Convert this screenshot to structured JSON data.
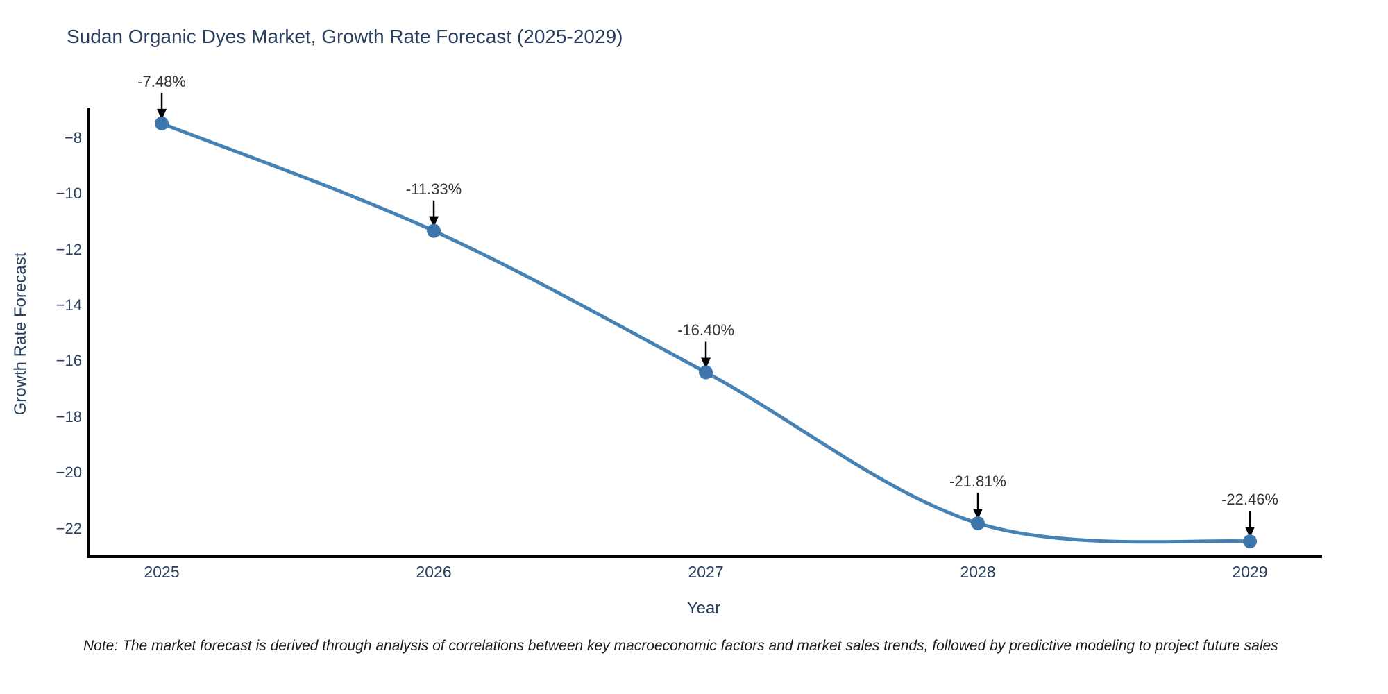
{
  "title": "Sudan Organic Dyes Market, Growth Rate Forecast (2025-2029)",
  "note": "Note: The market forecast is derived through analysis of correlations between key macroeconomic factors and market sales trends, followed by predictive modeling to project future sales",
  "chart_data": {
    "type": "line",
    "line_shape": "spline",
    "title": "Sudan Organic Dyes Market, Growth Rate Forecast (2025-2029)",
    "xlabel": "Year",
    "ylabel": "Growth Rate Forecast",
    "x": [
      2025,
      2026,
      2027,
      2028,
      2029
    ],
    "y": [
      -7.48,
      -11.33,
      -16.4,
      -21.81,
      -22.46
    ],
    "point_labels": [
      "-7.48%",
      "-11.33%",
      "-16.40%",
      "-21.81%",
      "-22.46%"
    ],
    "x_tick_labels": [
      "2025",
      "2026",
      "2027",
      "2028",
      "2029"
    ],
    "y_ticks": [
      -8,
      -10,
      -12,
      -14,
      -16,
      -18,
      -20,
      -22
    ],
    "y_tick_labels": [
      "−8",
      "−10",
      "−12",
      "−14",
      "−16",
      "−18",
      "−20",
      "−22"
    ],
    "xlim": [
      2024.732,
      2029.255
    ],
    "ylim": [
      -23.08,
      -6.96
    ],
    "grid": false,
    "legend": "none",
    "colors": {
      "line": "#4682b4",
      "marker": "#3c76ab",
      "axis_line": "#000000",
      "text": "#2a3f5f",
      "annotation_text": "#333333",
      "arrow": "#000000",
      "background": "#ffffff"
    }
  }
}
